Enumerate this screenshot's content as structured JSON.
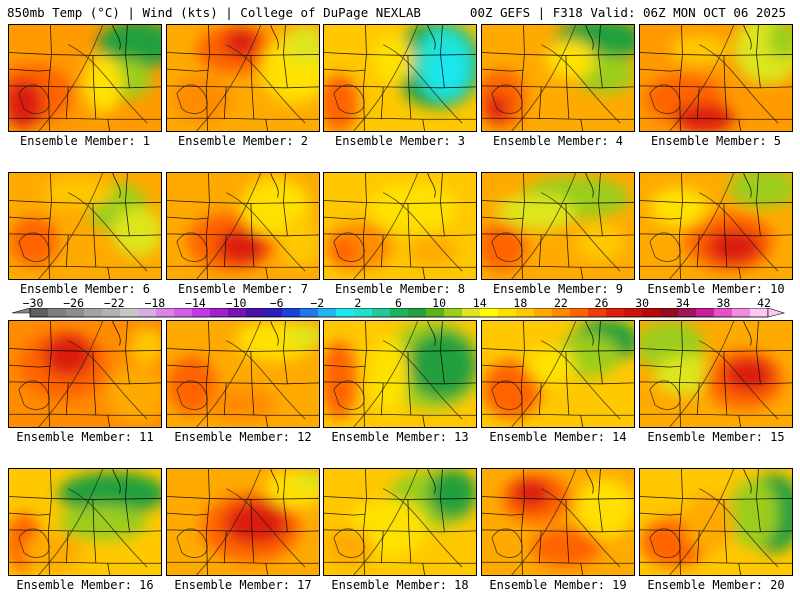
{
  "header": {
    "left": "850mb Temp (°C) | Wind (kts) | College of DuPage NEXLAB",
    "right": "00Z GEFS | F318 Valid: 06Z MON OCT 06 2025"
  },
  "colorbar": {
    "ticks": [
      "−30",
      "−26",
      "−22",
      "−18",
      "−14",
      "−10",
      "−6",
      "−2",
      "2",
      "6",
      "10",
      "14",
      "18",
      "22",
      "26",
      "30",
      "34",
      "38",
      "42"
    ],
    "colors": [
      "#5f5f5f",
      "#7f7f7f",
      "#8e8e8e",
      "#a3a3a3",
      "#b2b2b2",
      "#c7c7c7",
      "#d7aee0",
      "#d885e3",
      "#d35ce8",
      "#c638e6",
      "#a21ec8",
      "#7a12b4",
      "#4a10a8",
      "#2c1eb8",
      "#1a42d8",
      "#1f7ae8",
      "#21b4f0",
      "#1ee6f0",
      "#22e1c8",
      "#25c89a",
      "#1db45a",
      "#24a03c",
      "#5db418",
      "#9bcd1e",
      "#dde61e",
      "#ffff00",
      "#ffe100",
      "#ffc800",
      "#ffaa00",
      "#ff8c00",
      "#ff6400",
      "#f03c0a",
      "#dc1e0a",
      "#c8140a",
      "#b40a0a",
      "#960a1e",
      "#a0145a",
      "#c81e96",
      "#e650c8",
      "#f08cdc",
      "#fac8f0"
    ]
  },
  "panels": [
    {
      "label": "Ensemble Member: 1",
      "base": "#ff9a00",
      "blobs": [
        {
          "c": "#ff6400",
          "x": 25,
          "y": 70,
          "rx": 40,
          "ry": 30
        },
        {
          "c": "#dc1e0a",
          "x": 15,
          "y": 80,
          "rx": 20,
          "ry": 25
        },
        {
          "c": "#24a03c",
          "x": 130,
          "y": 20,
          "rx": 40,
          "ry": 25
        },
        {
          "c": "#9bcd1e",
          "x": 120,
          "y": 55,
          "rx": 25,
          "ry": 20
        },
        {
          "c": "#ffe100",
          "x": 95,
          "y": 60,
          "rx": 20,
          "ry": 30
        }
      ]
    },
    {
      "label": "Ensemble Member: 2",
      "base": "#ffaa00",
      "blobs": [
        {
          "c": "#ff6400",
          "x": 70,
          "y": 25,
          "rx": 40,
          "ry": 25
        },
        {
          "c": "#dc1e0a",
          "x": 75,
          "y": 18,
          "rx": 18,
          "ry": 15
        },
        {
          "c": "#ffe100",
          "x": 130,
          "y": 45,
          "rx": 35,
          "ry": 35
        },
        {
          "c": "#dde61e",
          "x": 140,
          "y": 20,
          "rx": 20,
          "ry": 20
        },
        {
          "c": "#ff8c00",
          "x": 35,
          "y": 75,
          "rx": 30,
          "ry": 25
        }
      ]
    },
    {
      "label": "Ensemble Member: 3",
      "base": "#ffc800",
      "blobs": [
        {
          "c": "#24a03c",
          "x": 115,
          "y": 40,
          "rx": 45,
          "ry": 45
        },
        {
          "c": "#22e1c8",
          "x": 122,
          "y": 40,
          "rx": 30,
          "ry": 38
        },
        {
          "c": "#1ee6f0",
          "x": 125,
          "y": 45,
          "rx": 18,
          "ry": 25
        },
        {
          "c": "#ff6400",
          "x": 15,
          "y": 80,
          "rx": 20,
          "ry": 30
        },
        {
          "c": "#ffe100",
          "x": 70,
          "y": 35,
          "rx": 20,
          "ry": 25
        }
      ]
    },
    {
      "label": "Ensemble Member: 4",
      "base": "#ffaa00",
      "blobs": [
        {
          "c": "#24a03c",
          "x": 120,
          "y": 15,
          "rx": 45,
          "ry": 22
        },
        {
          "c": "#9bcd1e",
          "x": 125,
          "y": 50,
          "rx": 30,
          "ry": 20
        },
        {
          "c": "#ff6400",
          "x": 20,
          "y": 75,
          "rx": 25,
          "ry": 30
        },
        {
          "c": "#dc1e0a",
          "x": 15,
          "y": 85,
          "rx": 12,
          "ry": 15
        },
        {
          "c": "#ffe100",
          "x": 90,
          "y": 35,
          "rx": 25,
          "ry": 20
        }
      ]
    },
    {
      "label": "Ensemble Member: 5",
      "base": "#ff9a00",
      "blobs": [
        {
          "c": "#dde61e",
          "x": 130,
          "y": 25,
          "rx": 35,
          "ry": 35
        },
        {
          "c": "#9bcd1e",
          "x": 145,
          "y": 15,
          "rx": 15,
          "ry": 20
        },
        {
          "c": "#ff6400",
          "x": 45,
          "y": 75,
          "rx": 40,
          "ry": 25
        },
        {
          "c": "#dc1e0a",
          "x": 65,
          "y": 95,
          "rx": 30,
          "ry": 15
        },
        {
          "c": "#ffc800",
          "x": 60,
          "y": 25,
          "rx": 30,
          "ry": 15
        }
      ]
    },
    {
      "label": "Ensemble Member: 6",
      "base": "#ffaa00",
      "blobs": [
        {
          "c": "#9bcd1e",
          "x": 110,
          "y": 35,
          "rx": 30,
          "ry": 25
        },
        {
          "c": "#dde61e",
          "x": 130,
          "y": 60,
          "rx": 25,
          "ry": 25
        },
        {
          "c": "#ff6400",
          "x": 25,
          "y": 70,
          "rx": 25,
          "ry": 25
        },
        {
          "c": "#ffc800",
          "x": 70,
          "y": 20,
          "rx": 35,
          "ry": 15
        }
      ]
    },
    {
      "label": "Ensemble Member: 7",
      "base": "#ffaa00",
      "blobs": [
        {
          "c": "#ff6400",
          "x": 65,
          "y": 70,
          "rx": 45,
          "ry": 30
        },
        {
          "c": "#dc1e0a",
          "x": 75,
          "y": 75,
          "rx": 25,
          "ry": 18
        },
        {
          "c": "#ffe100",
          "x": 110,
          "y": 35,
          "rx": 35,
          "ry": 30
        },
        {
          "c": "#ffc800",
          "x": 135,
          "y": 70,
          "rx": 20,
          "ry": 25
        }
      ]
    },
    {
      "label": "Ensemble Member: 8",
      "base": "#ffc800",
      "blobs": [
        {
          "c": "#ffe100",
          "x": 90,
          "y": 35,
          "rx": 45,
          "ry": 25
        },
        {
          "c": "#ff8c00",
          "x": 35,
          "y": 75,
          "rx": 35,
          "ry": 25
        },
        {
          "c": "#ff6400",
          "x": 20,
          "y": 80,
          "rx": 15,
          "ry": 15
        },
        {
          "c": "#ffaa00",
          "x": 110,
          "y": 80,
          "rx": 25,
          "ry": 15
        }
      ]
    },
    {
      "label": "Ensemble Member: 9",
      "base": "#ffaa00",
      "blobs": [
        {
          "c": "#9bcd1e",
          "x": 95,
          "y": 25,
          "rx": 55,
          "ry": 22
        },
        {
          "c": "#dde61e",
          "x": 55,
          "y": 40,
          "rx": 40,
          "ry": 18
        },
        {
          "c": "#ff6400",
          "x": 20,
          "y": 75,
          "rx": 25,
          "ry": 25
        },
        {
          "c": "#ffc800",
          "x": 120,
          "y": 70,
          "rx": 25,
          "ry": 20
        }
      ]
    },
    {
      "label": "Ensemble Member: 10",
      "base": "#ffaa00",
      "blobs": [
        {
          "c": "#9bcd1e",
          "x": 125,
          "y": 15,
          "rx": 35,
          "ry": 20
        },
        {
          "c": "#ff6400",
          "x": 90,
          "y": 70,
          "rx": 45,
          "ry": 30
        },
        {
          "c": "#dc1e0a",
          "x": 95,
          "y": 75,
          "rx": 28,
          "ry": 18
        },
        {
          "c": "#ffe100",
          "x": 40,
          "y": 35,
          "rx": 30,
          "ry": 20
        }
      ]
    },
    {
      "label": "Ensemble Member: 11",
      "base": "#ff8c00",
      "blobs": [
        {
          "c": "#ff6400",
          "x": 55,
          "y": 45,
          "rx": 45,
          "ry": 35
        },
        {
          "c": "#dc1e0a",
          "x": 60,
          "y": 35,
          "rx": 25,
          "ry": 22
        },
        {
          "c": "#ffaa00",
          "x": 130,
          "y": 75,
          "rx": 30,
          "ry": 30
        },
        {
          "c": "#ffc800",
          "x": 140,
          "y": 25,
          "rx": 18,
          "ry": 18
        }
      ]
    },
    {
      "label": "Ensemble Member: 12",
      "base": "#ffaa00",
      "blobs": [
        {
          "c": "#ffe100",
          "x": 110,
          "y": 20,
          "rx": 40,
          "ry": 20
        },
        {
          "c": "#dde61e",
          "x": 140,
          "y": 15,
          "rx": 18,
          "ry": 12
        },
        {
          "c": "#ff6400",
          "x": 25,
          "y": 65,
          "rx": 25,
          "ry": 30
        },
        {
          "c": "#ff8c00",
          "x": 75,
          "y": 85,
          "rx": 35,
          "ry": 18
        }
      ]
    },
    {
      "label": "Ensemble Member: 13",
      "base": "#ffc800",
      "blobs": [
        {
          "c": "#9bcd1e",
          "x": 110,
          "y": 45,
          "rx": 50,
          "ry": 45
        },
        {
          "c": "#24a03c",
          "x": 120,
          "y": 45,
          "rx": 35,
          "ry": 35
        },
        {
          "c": "#ff6400",
          "x": 15,
          "y": 60,
          "rx": 18,
          "ry": 40
        },
        {
          "c": "#ffe100",
          "x": 65,
          "y": 55,
          "rx": 20,
          "ry": 40
        }
      ]
    },
    {
      "label": "Ensemble Member: 14",
      "base": "#ffc800",
      "blobs": [
        {
          "c": "#24a03c",
          "x": 125,
          "y": 20,
          "rx": 35,
          "ry": 22
        },
        {
          "c": "#9bcd1e",
          "x": 105,
          "y": 35,
          "rx": 35,
          "ry": 22
        },
        {
          "c": "#ff6400",
          "x": 30,
          "y": 70,
          "rx": 30,
          "ry": 30
        },
        {
          "c": "#ffe100",
          "x": 70,
          "y": 45,
          "rx": 25,
          "ry": 20
        }
      ]
    },
    {
      "label": "Ensemble Member: 15",
      "base": "#ffaa00",
      "blobs": [
        {
          "c": "#9bcd1e",
          "x": 30,
          "y": 25,
          "rx": 35,
          "ry": 25
        },
        {
          "c": "#dde61e",
          "x": 45,
          "y": 55,
          "rx": 30,
          "ry": 20
        },
        {
          "c": "#ff6400",
          "x": 105,
          "y": 60,
          "rx": 40,
          "ry": 30
        },
        {
          "c": "#dc1e0a",
          "x": 110,
          "y": 55,
          "rx": 25,
          "ry": 18
        }
      ]
    },
    {
      "label": "Ensemble Member: 16",
      "base": "#ffc800",
      "blobs": [
        {
          "c": "#24a03c",
          "x": 105,
          "y": 25,
          "rx": 55,
          "ry": 22
        },
        {
          "c": "#9bcd1e",
          "x": 95,
          "y": 55,
          "rx": 45,
          "ry": 18
        },
        {
          "c": "#ff6400",
          "x": 15,
          "y": 75,
          "rx": 18,
          "ry": 30
        },
        {
          "c": "#ffaa00",
          "x": 45,
          "y": 85,
          "rx": 30,
          "ry": 20
        }
      ]
    },
    {
      "label": "Ensemble Member: 17",
      "base": "#ffaa00",
      "blobs": [
        {
          "c": "#ff6400",
          "x": 85,
          "y": 60,
          "rx": 50,
          "ry": 35
        },
        {
          "c": "#dc1e0a",
          "x": 90,
          "y": 55,
          "rx": 32,
          "ry": 22
        },
        {
          "c": "#ffe100",
          "x": 130,
          "y": 20,
          "rx": 30,
          "ry": 20
        },
        {
          "c": "#dde61e",
          "x": 145,
          "y": 12,
          "rx": 15,
          "ry": 10
        }
      ]
    },
    {
      "label": "Ensemble Member: 18",
      "base": "#ffc800",
      "blobs": [
        {
          "c": "#9bcd1e",
          "x": 110,
          "y": 30,
          "rx": 45,
          "ry": 30
        },
        {
          "c": "#24a03c",
          "x": 130,
          "y": 25,
          "rx": 25,
          "ry": 25
        },
        {
          "c": "#ffe100",
          "x": 65,
          "y": 60,
          "rx": 40,
          "ry": 30
        },
        {
          "c": "#ffaa00",
          "x": 25,
          "y": 80,
          "rx": 25,
          "ry": 20
        }
      ]
    },
    {
      "label": "Ensemble Member: 19",
      "base": "#ffaa00",
      "blobs": [
        {
          "c": "#ff6400",
          "x": 55,
          "y": 30,
          "rx": 35,
          "ry": 25
        },
        {
          "c": "#dc1e0a",
          "x": 50,
          "y": 25,
          "rx": 20,
          "ry": 15
        },
        {
          "c": "#ff6400",
          "x": 85,
          "y": 80,
          "rx": 35,
          "ry": 20
        },
        {
          "c": "#ffe100",
          "x": 125,
          "y": 40,
          "rx": 30,
          "ry": 30
        }
      ]
    },
    {
      "label": "Ensemble Member: 20",
      "base": "#ffc800",
      "blobs": [
        {
          "c": "#24a03c",
          "x": 135,
          "y": 45,
          "rx": 30,
          "ry": 40
        },
        {
          "c": "#9bcd1e",
          "x": 115,
          "y": 45,
          "rx": 25,
          "ry": 35
        },
        {
          "c": "#ff6400",
          "x": 35,
          "y": 75,
          "rx": 35,
          "ry": 25
        },
        {
          "c": "#ffaa00",
          "x": 70,
          "y": 55,
          "rx": 25,
          "ry": 30
        }
      ]
    }
  ]
}
